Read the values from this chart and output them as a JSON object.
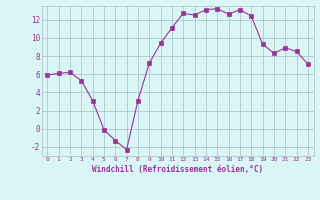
{
  "x": [
    0,
    1,
    2,
    3,
    4,
    5,
    6,
    7,
    8,
    9,
    10,
    11,
    12,
    13,
    14,
    15,
    16,
    17,
    18,
    19,
    20,
    21,
    22,
    23
  ],
  "y": [
    5.9,
    6.1,
    6.2,
    5.3,
    3.1,
    -0.1,
    -1.3,
    -2.3,
    3.1,
    7.2,
    9.4,
    11.1,
    12.7,
    12.5,
    13.1,
    13.2,
    12.6,
    13.1,
    12.4,
    9.3,
    8.3,
    8.9,
    8.5,
    7.1
  ],
  "line_color": "#993399",
  "marker": "s",
  "marker_size": 2.5,
  "bg_color": "#d9f5f5",
  "grid_color": "#b0c8c8",
  "xlabel": "Windchill (Refroidissement éolien,°C)",
  "xlabel_color": "#993399",
  "tick_color": "#993399",
  "ylim": [
    -3,
    13.5
  ],
  "xlim": [
    -0.5,
    23.5
  ],
  "yticks": [
    -2,
    0,
    2,
    4,
    6,
    8,
    10,
    12
  ],
  "xticks": [
    0,
    1,
    2,
    3,
    4,
    5,
    6,
    7,
    8,
    9,
    10,
    11,
    12,
    13,
    14,
    15,
    16,
    17,
    18,
    19,
    20,
    21,
    22,
    23
  ]
}
